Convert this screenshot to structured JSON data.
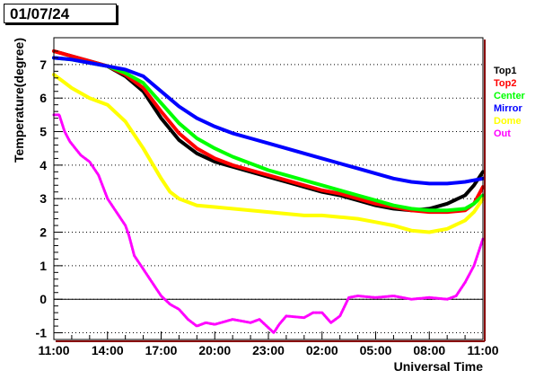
{
  "date_label": "01/07/24",
  "chart_data": {
    "type": "line",
    "title": "",
    "xlabel": "Universal Time",
    "ylabel": "Temperature(degree)",
    "x_ticks": [
      "11:00",
      "14:00",
      "17:00",
      "20:00",
      "23:00",
      "02:00",
      "05:00",
      "08:00",
      "11:00"
    ],
    "x_hours": [
      0,
      3,
      6,
      9,
      12,
      15,
      18,
      21,
      24
    ],
    "xlim_hours": [
      0,
      24
    ],
    "y_ticks": [
      -1,
      0,
      1,
      2,
      3,
      4,
      5,
      6,
      7
    ],
    "ylim": [
      -1.2,
      7.8
    ],
    "grid": "horizontal dotted",
    "legend_position": "right",
    "series": [
      {
        "name": "Top1",
        "color": "#000000",
        "x": [
          0,
          1,
          2,
          3,
          4,
          5,
          6,
          7,
          8,
          9,
          10,
          11,
          12,
          13,
          14,
          15,
          16,
          17,
          18,
          19,
          20,
          21,
          22,
          23,
          23.5,
          24
        ],
        "y": [
          7.4,
          7.25,
          7.1,
          6.95,
          6.65,
          6.2,
          5.4,
          4.75,
          4.35,
          4.1,
          3.95,
          3.8,
          3.65,
          3.5,
          3.35,
          3.2,
          3.1,
          2.95,
          2.8,
          2.7,
          2.65,
          2.7,
          2.85,
          3.1,
          3.4,
          3.8
        ]
      },
      {
        "name": "Top2",
        "color": "#ff0000",
        "x": [
          0,
          1,
          2,
          3,
          4,
          5,
          6,
          7,
          8,
          9,
          10,
          11,
          12,
          13,
          14,
          15,
          16,
          17,
          18,
          19,
          20,
          21,
          22,
          23,
          23.5,
          24
        ],
        "y": [
          7.4,
          7.25,
          7.1,
          6.95,
          6.7,
          6.3,
          5.6,
          4.95,
          4.5,
          4.2,
          4.0,
          3.85,
          3.7,
          3.55,
          3.4,
          3.25,
          3.15,
          3.0,
          2.85,
          2.75,
          2.65,
          2.6,
          2.6,
          2.65,
          2.85,
          3.35
        ]
      },
      {
        "name": "Center",
        "color": "#00ff00",
        "x": [
          0,
          1,
          2,
          3,
          4,
          5,
          6,
          7,
          8,
          9,
          10,
          11,
          12,
          13,
          14,
          15,
          16,
          17,
          18,
          19,
          20,
          21,
          22,
          23,
          23.5,
          24
        ],
        "y": [
          7.2,
          7.15,
          7.05,
          6.95,
          6.75,
          6.45,
          5.85,
          5.25,
          4.8,
          4.5,
          4.25,
          4.05,
          3.85,
          3.7,
          3.55,
          3.4,
          3.25,
          3.1,
          2.95,
          2.8,
          2.7,
          2.65,
          2.65,
          2.7,
          2.85,
          3.1
        ]
      },
      {
        "name": "Mirror",
        "color": "#0000ff",
        "x": [
          0,
          1,
          2,
          3,
          4,
          5,
          6,
          7,
          8,
          9,
          10,
          11,
          12,
          13,
          14,
          15,
          16,
          17,
          18,
          19,
          20,
          21,
          22,
          23,
          23.5,
          24
        ],
        "y": [
          7.2,
          7.15,
          7.05,
          6.95,
          6.85,
          6.65,
          6.2,
          5.75,
          5.4,
          5.15,
          4.95,
          4.8,
          4.65,
          4.5,
          4.35,
          4.2,
          4.05,
          3.9,
          3.75,
          3.6,
          3.5,
          3.45,
          3.45,
          3.5,
          3.55,
          3.6
        ]
      },
      {
        "name": "Dome",
        "color": "#ffff00",
        "x": [
          0,
          0.5,
          1,
          2,
          3,
          4,
          5,
          6,
          6.5,
          7,
          8,
          9,
          10,
          11,
          12,
          13,
          14,
          15,
          16,
          17,
          18,
          19,
          20,
          21,
          22,
          23,
          23.5,
          24
        ],
        "y": [
          6.7,
          6.5,
          6.3,
          6.0,
          5.8,
          5.3,
          4.5,
          3.6,
          3.2,
          3.0,
          2.8,
          2.75,
          2.7,
          2.65,
          2.6,
          2.55,
          2.5,
          2.5,
          2.45,
          2.4,
          2.3,
          2.2,
          2.05,
          2.0,
          2.1,
          2.35,
          2.6,
          3.0
        ]
      },
      {
        "name": "Out",
        "color": "#ff00ff",
        "x": [
          0,
          0.3,
          0.6,
          0.9,
          1.2,
          1.5,
          2.0,
          2.5,
          3.0,
          3.5,
          4.0,
          4.2,
          4.5,
          5.0,
          5.5,
          6.0,
          6.5,
          7.0,
          7.5,
          8.0,
          8.5,
          9.0,
          10,
          11,
          11.5,
          12,
          12.3,
          12.6,
          13,
          14,
          14.5,
          15,
          15.5,
          16,
          16.5,
          17,
          18,
          19,
          20,
          21,
          22,
          22.5,
          23,
          23.5,
          24
        ],
        "y": [
          5.5,
          5.5,
          5.0,
          4.7,
          4.5,
          4.3,
          4.1,
          3.7,
          3.0,
          2.6,
          2.2,
          1.9,
          1.3,
          0.9,
          0.5,
          0.1,
          -0.15,
          -0.3,
          -0.6,
          -0.8,
          -0.7,
          -0.75,
          -0.6,
          -0.7,
          -0.6,
          -0.85,
          -1.0,
          -0.75,
          -0.5,
          -0.55,
          -0.4,
          -0.4,
          -0.7,
          -0.5,
          0.05,
          0.1,
          0.05,
          0.1,
          0.0,
          0.05,
          0.0,
          0.1,
          0.5,
          1.0,
          1.8
        ]
      }
    ]
  }
}
